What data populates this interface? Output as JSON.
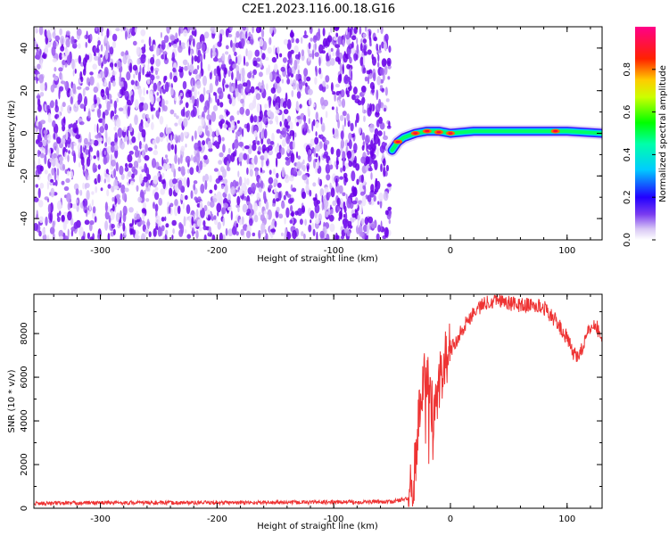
{
  "title": "C2E1.2023.116.00.18.G16",
  "colors": {
    "snr_line": "#ee3333",
    "axis": "#000000"
  },
  "chart_data": [
    {
      "type": "heatmap",
      "title": "C2E1.2023.116.00.18.G16",
      "xlabel": "Height of straight line (km)",
      "ylabel": "Frequency (Hz)",
      "xlim": [
        -357,
        130
      ],
      "ylim": [
        -50,
        50
      ],
      "xticks": [
        -300,
        -200,
        -100,
        0,
        100
      ],
      "xtick_labels": [
        "-300",
        "-200",
        "-100",
        "0",
        "100"
      ],
      "yticks": [
        -40,
        -20,
        0,
        20,
        40
      ],
      "ytick_labels": [
        "-40",
        "-20",
        "0",
        "20",
        "40"
      ],
      "colorbar": {
        "label": "Normalized spectral amplitude",
        "range": [
          0,
          1
        ],
        "ticks": [
          0.0,
          0.2,
          0.4,
          0.6,
          0.8
        ],
        "tick_labels": [
          "0.0",
          "0.2",
          "0.4",
          "0.6",
          "0.8"
        ]
      },
      "noise_region": {
        "x_from": -357,
        "x_to": -52,
        "description_values": "scattered low-amplitude purple speckles over full frequency range"
      },
      "signal_trace": {
        "x": [
          -50,
          -45,
          -40,
          -30,
          -20,
          -10,
          0,
          20,
          50,
          90,
          100,
          130
        ],
        "y": [
          -8,
          -4,
          -2,
          0,
          1,
          1,
          0,
          1,
          1,
          1,
          1,
          0
        ]
      }
    },
    {
      "type": "line",
      "xlabel": "Height of straight line (km)",
      "ylabel": "SNR (10 * v/v)",
      "xlim": [
        -357,
        130
      ],
      "ylim": [
        0,
        9800
      ],
      "xticks": [
        -300,
        -200,
        -100,
        0,
        100
      ],
      "xtick_labels": [
        "-300",
        "-200",
        "-100",
        "0",
        "100"
      ],
      "yticks": [
        0,
        2000,
        4000,
        6000,
        8000
      ],
      "ytick_labels": [
        "0",
        "2000",
        "4000",
        "6000",
        "8000"
      ],
      "series": [
        {
          "x": [
            -357,
            -300,
            -200,
            -100,
            -50,
            -36,
            -32,
            -28,
            -25,
            -20,
            -15,
            -10,
            -5,
            0,
            10,
            20,
            30,
            40,
            50,
            60,
            70,
            80,
            90,
            100,
            105,
            110,
            115,
            120,
            125,
            130
          ],
          "y": [
            220,
            250,
            250,
            280,
            300,
            450,
            1000,
            3500,
            5500,
            6200,
            4200,
            5800,
            6800,
            7200,
            8200,
            9000,
            9400,
            9600,
            9400,
            9300,
            9300,
            9200,
            8600,
            7800,
            7100,
            7000,
            7600,
            8300,
            8400,
            7600
          ]
        }
      ]
    }
  ]
}
